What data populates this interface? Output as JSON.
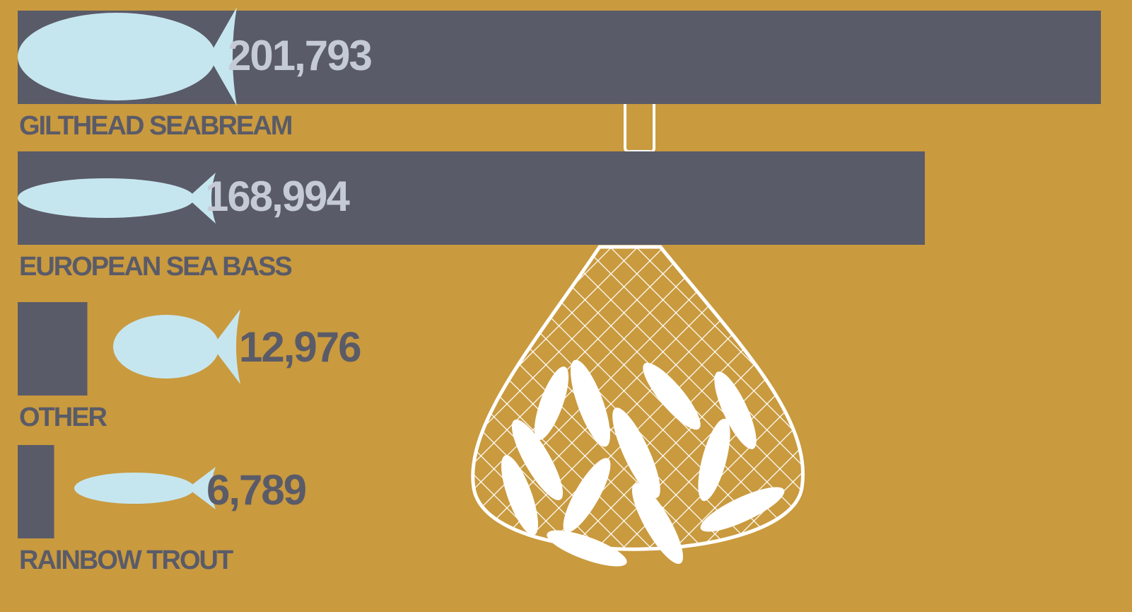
{
  "chart_data": {
    "type": "bar",
    "orientation": "horizontal",
    "categories": [
      "GILTHEAD SEABREAM",
      "EUROPEAN SEA BASS",
      "OTHER",
      "RAINBOW TROUT"
    ],
    "values": [
      201793,
      168994,
      12976,
      6789
    ],
    "value_labels": [
      "201,793",
      "168,994",
      "12,976",
      "6,789"
    ],
    "color": "#5a5b68"
  }
}
